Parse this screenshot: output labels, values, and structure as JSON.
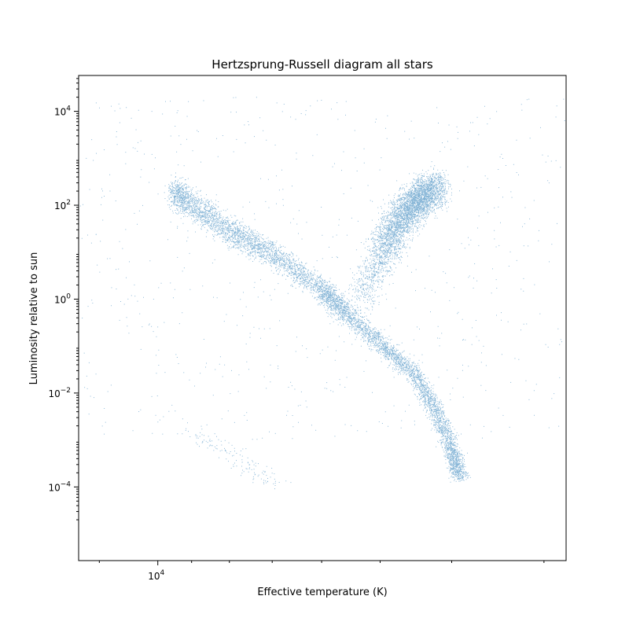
{
  "chart_data": {
    "type": "scatter",
    "title": "Hertzsprung-Russell diagram all stars",
    "xlabel": "Effective temperature (K)",
    "ylabel": "Luminosity relative to sun",
    "xscale": "log",
    "yscale": "log",
    "x_axis_inverted": true,
    "xlim": [
      12800,
      2800
    ],
    "ylim": [
      2.7e-06,
      58000
    ],
    "x_major_ticks": [
      {
        "value": 10000,
        "base": "10",
        "exp": "4"
      }
    ],
    "x_minor_ticks": [
      12000,
      9000,
      8000,
      7000,
      6000,
      5000,
      4000,
      3000
    ],
    "y_major_ticks": [
      {
        "value": 10000,
        "base": "10",
        "exp": "4"
      },
      {
        "value": 100,
        "base": "10",
        "exp": "2"
      },
      {
        "value": 1,
        "base": "10",
        "exp": "0"
      },
      {
        "value": 0.01,
        "base": "10",
        "exp": "−2"
      },
      {
        "value": 0.0001,
        "base": "10",
        "exp": "−4"
      }
    ],
    "marker_color": "#1f77b4",
    "grid": false,
    "series": [
      {
        "point_count_approx": 120000,
        "density_regions": [
          {
            "label": "main sequence (hot, luminous)",
            "points": [
              [
                9500,
                190
              ],
              [
                8000,
                28
              ],
              [
                7000,
                9
              ],
              [
                6000,
                1.6
              ],
              [
                5600,
                0.55
              ],
              [
                5000,
                0.11
              ],
              [
                4500,
                0.026
              ],
              [
                4200,
                0.004
              ],
              [
                4000,
                0.0006
              ],
              [
                3900,
                0.00015
              ]
            ]
          },
          {
            "label": "giant branch",
            "points": [
              [
                5400,
                0.7
              ],
              [
                5000,
                7
              ],
              [
                4800,
                30
              ],
              [
                4600,
                80
              ],
              [
                4400,
                150
              ],
              [
                4200,
                250
              ]
            ]
          },
          {
            "label": "white dwarfs",
            "points": [
              [
                9000,
                0.0016
              ],
              [
                8200,
                0.0007
              ],
              [
                7500,
                0.00025
              ],
              [
                6800,
                0.00012
              ]
            ]
          }
        ]
      }
    ]
  }
}
